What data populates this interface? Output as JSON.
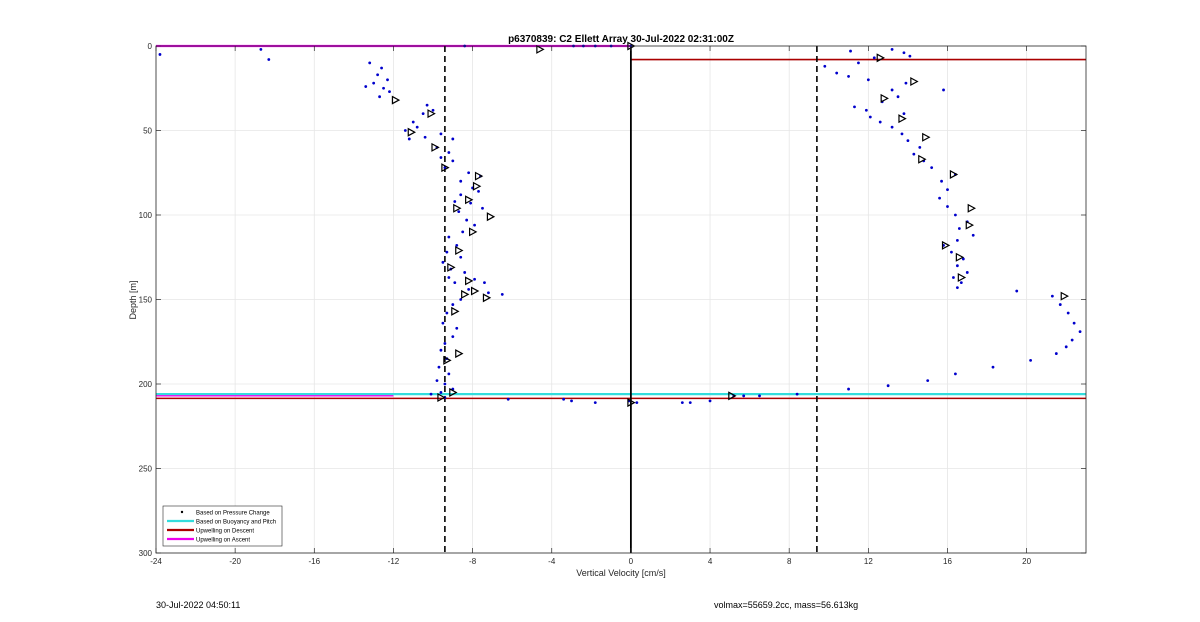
{
  "footer": {
    "timestamp": "30-Jul-2022 04:50:11",
    "volume_mass": "volmax=55659.2cc, mass=56.613kg"
  },
  "colors": {
    "pressure_points": "#0000cc",
    "buoyancy_line": "#33dddd",
    "descent_line": "#aa0000",
    "ascent_line": "#ee00ee",
    "reference_lines": "#000000",
    "grid": "#e6e6e6"
  },
  "chart_data": {
    "type": "scatter",
    "title": "p6370839: C2 Ellett Array 30-Jul-2022 02:31:00Z",
    "xlabel": "Vertical Velocity [cm/s]",
    "ylabel": "Depth [m]",
    "xlim": [
      -24,
      23
    ],
    "ylim": [
      0,
      300
    ],
    "y_reversed": true,
    "grid": true,
    "xticks": [
      -24,
      -20,
      -16,
      -12,
      -8,
      -4,
      0,
      4,
      8,
      12,
      16,
      20
    ],
    "yticks": [
      0,
      50,
      100,
      150,
      200,
      250,
      300
    ],
    "legend": {
      "placement": "bottom-left",
      "entries": [
        {
          "label": "Based on Pressure Change",
          "style": "dot",
          "color": "#000000"
        },
        {
          "label": "Based on Buoyancy and Pitch",
          "style": "line",
          "color": "#33dddd"
        },
        {
          "label": "Upwelling on Descent",
          "style": "line",
          "color": "#aa0000"
        },
        {
          "label": "Upwelling on Ascent",
          "style": "line",
          "color": "#ee00ee"
        }
      ]
    },
    "reference_lines": [
      {
        "axis": "x",
        "value": -9.4,
        "style": "dashed"
      },
      {
        "axis": "x",
        "value": 9.4,
        "style": "dashed"
      },
      {
        "axis": "x",
        "value": 0,
        "style": "solid"
      }
    ],
    "series": [
      {
        "name": "Based on Pressure Change",
        "kind": "points",
        "points": [
          [
            -23.8,
            5
          ],
          [
            -18.7,
            2
          ],
          [
            -18.3,
            8
          ],
          [
            -8.4,
            0
          ],
          [
            -2.9,
            0
          ],
          [
            -2.4,
            0
          ],
          [
            -1.8,
            0
          ],
          [
            -1.0,
            0
          ],
          [
            0,
            0
          ],
          [
            -13.2,
            10
          ],
          [
            -12.6,
            13
          ],
          [
            -12.8,
            17
          ],
          [
            -12.3,
            20
          ],
          [
            -13.0,
            22
          ],
          [
            -12.5,
            25
          ],
          [
            -13.4,
            24
          ],
          [
            -12.2,
            27
          ],
          [
            -12.7,
            30
          ],
          [
            -10.3,
            35
          ],
          [
            -10.0,
            38
          ],
          [
            -10.5,
            40
          ],
          [
            -11.0,
            45
          ],
          [
            -10.8,
            48
          ],
          [
            -11.4,
            50
          ],
          [
            -11.2,
            55
          ],
          [
            -10.4,
            54
          ],
          [
            -9.6,
            52
          ],
          [
            -9.0,
            55
          ],
          [
            -9.8,
            60
          ],
          [
            -9.2,
            63
          ],
          [
            -9.6,
            66
          ],
          [
            -9.0,
            68
          ],
          [
            -9.4,
            72
          ],
          [
            -8.2,
            75
          ],
          [
            -7.6,
            77
          ],
          [
            -8.6,
            80
          ],
          [
            -8.0,
            84
          ],
          [
            -7.7,
            86
          ],
          [
            -8.6,
            88
          ],
          [
            -8.9,
            92
          ],
          [
            -8.1,
            93
          ],
          [
            -7.5,
            96
          ],
          [
            -8.7,
            98
          ],
          [
            -8.3,
            103
          ],
          [
            -7.9,
            106
          ],
          [
            -8.5,
            110
          ],
          [
            -9.2,
            113
          ],
          [
            -8.8,
            118
          ],
          [
            -9.3,
            122
          ],
          [
            -8.6,
            125
          ],
          [
            -9.5,
            128
          ],
          [
            -9.1,
            132
          ],
          [
            -8.4,
            134
          ],
          [
            -9.2,
            137
          ],
          [
            -8.9,
            140
          ],
          [
            -7.9,
            138
          ],
          [
            -7.4,
            140
          ],
          [
            -8.2,
            144
          ],
          [
            -7.2,
            146
          ],
          [
            -6.5,
            147
          ],
          [
            -8.6,
            150
          ],
          [
            -9.0,
            153
          ],
          [
            -9.3,
            158
          ],
          [
            -9.5,
            164
          ],
          [
            -8.8,
            167
          ],
          [
            -9.0,
            172
          ],
          [
            -9.4,
            176
          ],
          [
            -9.6,
            180
          ],
          [
            -9.3,
            185
          ],
          [
            -9.7,
            190
          ],
          [
            -9.2,
            194
          ],
          [
            -9.8,
            198
          ],
          [
            -9.4,
            200
          ],
          [
            -9.0,
            203
          ],
          [
            -9.6,
            205
          ],
          [
            -10.1,
            206
          ],
          [
            -9.4,
            208
          ],
          [
            -6.2,
            209
          ],
          [
            -3.4,
            209
          ],
          [
            -3.0,
            210
          ],
          [
            -1.8,
            211
          ],
          [
            -0.1,
            210
          ],
          [
            0.3,
            211
          ],
          [
            2.6,
            211
          ],
          [
            3.0,
            211
          ],
          [
            4.0,
            210
          ],
          [
            5.2,
            207
          ],
          [
            5.7,
            207
          ],
          [
            6.5,
            207
          ],
          [
            8.4,
            206
          ],
          [
            11.0,
            203
          ],
          [
            13.0,
            201
          ],
          [
            15.0,
            198
          ],
          [
            16.4,
            194
          ],
          [
            18.3,
            190
          ],
          [
            20.2,
            186
          ],
          [
            21.5,
            182
          ],
          [
            22.0,
            178
          ],
          [
            22.3,
            174
          ],
          [
            22.7,
            169
          ],
          [
            22.4,
            164
          ],
          [
            22.1,
            158
          ],
          [
            21.7,
            153
          ],
          [
            21.3,
            148
          ],
          [
            19.5,
            145
          ],
          [
            16.5,
            143
          ],
          [
            16.7,
            140
          ],
          [
            16.3,
            137
          ],
          [
            17.0,
            134
          ],
          [
            16.5,
            130
          ],
          [
            16.8,
            126
          ],
          [
            16.2,
            122
          ],
          [
            15.8,
            118
          ],
          [
            16.5,
            115
          ],
          [
            17.3,
            112
          ],
          [
            16.6,
            108
          ],
          [
            17.0,
            104
          ],
          [
            16.4,
            100
          ],
          [
            16.0,
            95
          ],
          [
            15.6,
            90
          ],
          [
            16.0,
            85
          ],
          [
            15.7,
            80
          ],
          [
            16.4,
            76
          ],
          [
            15.2,
            72
          ],
          [
            14.8,
            68
          ],
          [
            14.3,
            64
          ],
          [
            14.6,
            60
          ],
          [
            14.0,
            56
          ],
          [
            13.7,
            52
          ],
          [
            13.2,
            48
          ],
          [
            12.6,
            45
          ],
          [
            12.1,
            42
          ],
          [
            13.8,
            40
          ],
          [
            11.9,
            38
          ],
          [
            11.3,
            36
          ],
          [
            12.7,
            33
          ],
          [
            13.5,
            30
          ],
          [
            13.2,
            26
          ],
          [
            13.9,
            22
          ],
          [
            15.8,
            26
          ],
          [
            12.0,
            20
          ],
          [
            11.0,
            18
          ],
          [
            10.4,
            16
          ],
          [
            9.8,
            12
          ],
          [
            11.5,
            10
          ],
          [
            12.3,
            7
          ],
          [
            11.1,
            3
          ],
          [
            13.2,
            2
          ],
          [
            13.8,
            4
          ],
          [
            14.1,
            6
          ]
        ]
      },
      {
        "name": "Based on Pressure Change (averaged)",
        "kind": "markers",
        "points": [
          [
            -4.6,
            2
          ],
          [
            0.0,
            0
          ],
          [
            -11.9,
            32
          ],
          [
            -10.1,
            40
          ],
          [
            -11.1,
            51
          ],
          [
            -9.9,
            60
          ],
          [
            -9.4,
            72
          ],
          [
            -7.7,
            77
          ],
          [
            -7.8,
            83
          ],
          [
            -8.2,
            91
          ],
          [
            -8.8,
            96
          ],
          [
            -7.1,
            101
          ],
          [
            -8.0,
            110
          ],
          [
            -8.7,
            121
          ],
          [
            -9.1,
            131
          ],
          [
            -8.2,
            139
          ],
          [
            -7.9,
            145
          ],
          [
            -8.4,
            147
          ],
          [
            -7.3,
            149
          ],
          [
            -8.9,
            157
          ],
          [
            -8.7,
            182
          ],
          [
            -9.3,
            186
          ],
          [
            -9.0,
            205
          ],
          [
            -9.6,
            208
          ],
          [
            0.0,
            211
          ],
          [
            5.1,
            207
          ],
          [
            21.9,
            148
          ],
          [
            16.7,
            137
          ],
          [
            16.6,
            125
          ],
          [
            15.9,
            118
          ],
          [
            17.1,
            106
          ],
          [
            17.2,
            96
          ],
          [
            16.3,
            76
          ],
          [
            14.7,
            67
          ],
          [
            14.9,
            54
          ],
          [
            13.7,
            43
          ],
          [
            12.8,
            31
          ],
          [
            14.3,
            21
          ],
          [
            12.6,
            7
          ]
        ]
      },
      {
        "name": "Based on Buoyancy and Pitch",
        "kind": "hline",
        "y": 206,
        "x_from": -24,
        "x_to": 23
      },
      {
        "name": "Upwelling on Descent",
        "kind": "hline",
        "y": 208.5,
        "x_from": -24,
        "x_to": 23
      },
      {
        "name": "Upwelling on Descent (top)",
        "kind": "hline",
        "y": 8,
        "x_from": 0,
        "x_to": 23
      },
      {
        "name": "Upwelling on Ascent",
        "kind": "hline",
        "y": 0,
        "x_from": -24,
        "x_to": 0
      },
      {
        "name": "Upwelling on Ascent (bottom)",
        "kind": "hline",
        "y": 207,
        "x_from": -24,
        "x_to": -12
      }
    ]
  }
}
